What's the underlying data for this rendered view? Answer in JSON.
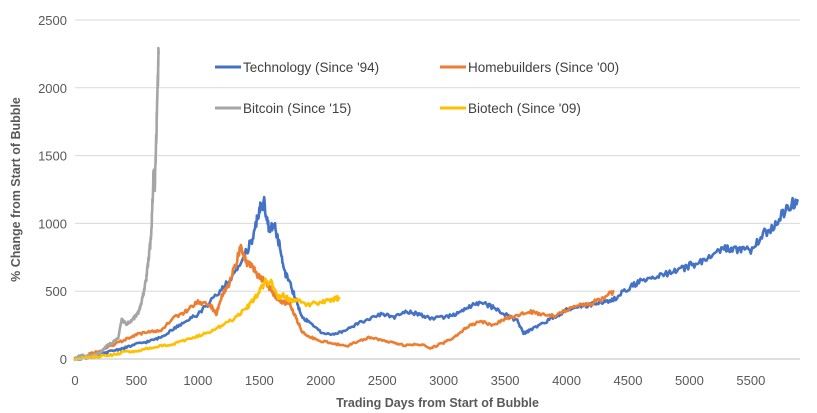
{
  "chart_data": {
    "type": "line",
    "title": "",
    "xlabel": "Trading Days from Start of Bubble",
    "ylabel": "% Change from Start of Bubble",
    "xlim": [
      0,
      5900
    ],
    "ylim": [
      0,
      2500
    ],
    "x_ticks": [
      0,
      500,
      1000,
      1500,
      2000,
      2500,
      3000,
      3500,
      4000,
      4500,
      5000,
      5500
    ],
    "y_ticks": [
      0,
      500,
      1000,
      1500,
      2000,
      2500
    ],
    "grid": "horizontal",
    "legend_position": "top-right",
    "series": [
      {
        "name": "Technology (Since '94)",
        "color": "#4472c4",
        "points": [
          [
            0,
            0
          ],
          [
            100,
            10
          ],
          [
            200,
            30
          ],
          [
            300,
            60
          ],
          [
            400,
            80
          ],
          [
            500,
            110
          ],
          [
            600,
            130
          ],
          [
            700,
            160
          ],
          [
            800,
            220
          ],
          [
            900,
            280
          ],
          [
            1000,
            330
          ],
          [
            1100,
            420
          ],
          [
            1200,
            520
          ],
          [
            1300,
            620
          ],
          [
            1400,
            800
          ],
          [
            1450,
            900
          ],
          [
            1500,
            1100
          ],
          [
            1540,
            1150
          ],
          [
            1580,
            950
          ],
          [
            1620,
            1000
          ],
          [
            1660,
            850
          ],
          [
            1700,
            650
          ],
          [
            1750,
            560
          ],
          [
            1800,
            430
          ],
          [
            1850,
            300
          ],
          [
            1900,
            280
          ],
          [
            2000,
            200
          ],
          [
            2100,
            180
          ],
          [
            2200,
            210
          ],
          [
            2300,
            260
          ],
          [
            2400,
            300
          ],
          [
            2500,
            330
          ],
          [
            2600,
            310
          ],
          [
            2700,
            350
          ],
          [
            2800,
            330
          ],
          [
            2900,
            300
          ],
          [
            3000,
            310
          ],
          [
            3100,
            330
          ],
          [
            3200,
            380
          ],
          [
            3300,
            420
          ],
          [
            3400,
            380
          ],
          [
            3500,
            330
          ],
          [
            3600,
            280
          ],
          [
            3650,
            190
          ],
          [
            3700,
            210
          ],
          [
            3800,
            260
          ],
          [
            3900,
            310
          ],
          [
            4000,
            360
          ],
          [
            4100,
            390
          ],
          [
            4200,
            400
          ],
          [
            4300,
            420
          ],
          [
            4400,
            450
          ],
          [
            4500,
            520
          ],
          [
            4600,
            570
          ],
          [
            4700,
            600
          ],
          [
            4800,
            620
          ],
          [
            4900,
            650
          ],
          [
            5000,
            690
          ],
          [
            5100,
            720
          ],
          [
            5200,
            780
          ],
          [
            5300,
            820
          ],
          [
            5400,
            800
          ],
          [
            5500,
            800
          ],
          [
            5600,
            920
          ],
          [
            5700,
            1000
          ],
          [
            5800,
            1120
          ],
          [
            5880,
            1170
          ]
        ]
      },
      {
        "name": "Homebuilders (Since '00)",
        "color": "#ed7d31",
        "points": [
          [
            0,
            0
          ],
          [
            100,
            30
          ],
          [
            200,
            60
          ],
          [
            300,
            100
          ],
          [
            400,
            140
          ],
          [
            500,
            180
          ],
          [
            600,
            200
          ],
          [
            700,
            210
          ],
          [
            800,
            300
          ],
          [
            900,
            350
          ],
          [
            1000,
            420
          ],
          [
            1100,
            400
          ],
          [
            1150,
            330
          ],
          [
            1200,
            480
          ],
          [
            1250,
            540
          ],
          [
            1300,
            680
          ],
          [
            1350,
            830
          ],
          [
            1400,
            700
          ],
          [
            1450,
            680
          ],
          [
            1500,
            600
          ],
          [
            1550,
            580
          ],
          [
            1600,
            500
          ],
          [
            1650,
            430
          ],
          [
            1700,
            420
          ],
          [
            1750,
            400
          ],
          [
            1800,
            300
          ],
          [
            1850,
            200
          ],
          [
            1900,
            170
          ],
          [
            2000,
            130
          ],
          [
            2100,
            120
          ],
          [
            2200,
            90
          ],
          [
            2300,
            130
          ],
          [
            2400,
            160
          ],
          [
            2500,
            140
          ],
          [
            2600,
            120
          ],
          [
            2700,
            100
          ],
          [
            2800,
            110
          ],
          [
            2900,
            80
          ],
          [
            3000,
            120
          ],
          [
            3100,
            170
          ],
          [
            3200,
            240
          ],
          [
            3300,
            280
          ],
          [
            3400,
            250
          ],
          [
            3500,
            300
          ],
          [
            3600,
            320
          ],
          [
            3700,
            350
          ],
          [
            3800,
            330
          ],
          [
            3900,
            320
          ],
          [
            4000,
            360
          ],
          [
            4100,
            400
          ],
          [
            4200,
            410
          ],
          [
            4300,
            450
          ],
          [
            4380,
            500
          ]
        ]
      },
      {
        "name": "Bitcoin (Since '15)",
        "color": "#a5a5a5",
        "points": [
          [
            0,
            0
          ],
          [
            50,
            30
          ],
          [
            100,
            20
          ],
          [
            150,
            30
          ],
          [
            200,
            40
          ],
          [
            250,
            90
          ],
          [
            300,
            120
          ],
          [
            350,
            150
          ],
          [
            380,
            290
          ],
          [
            420,
            260
          ],
          [
            450,
            280
          ],
          [
            480,
            300
          ],
          [
            500,
            330
          ],
          [
            520,
            350
          ],
          [
            550,
            450
          ],
          [
            580,
            600
          ],
          [
            600,
            750
          ],
          [
            620,
            900
          ],
          [
            640,
            1400
          ],
          [
            650,
            1250
          ],
          [
            660,
            1600
          ],
          [
            670,
            1900
          ],
          [
            680,
            2250
          ]
        ]
      },
      {
        "name": "Biotech (Since '09)",
        "color": "#ffc000",
        "points": [
          [
            0,
            0
          ],
          [
            100,
            10
          ],
          [
            200,
            20
          ],
          [
            300,
            30
          ],
          [
            400,
            50
          ],
          [
            500,
            60
          ],
          [
            600,
            80
          ],
          [
            700,
            100
          ],
          [
            800,
            110
          ],
          [
            900,
            140
          ],
          [
            1000,
            170
          ],
          [
            1100,
            200
          ],
          [
            1200,
            250
          ],
          [
            1300,
            300
          ],
          [
            1400,
            380
          ],
          [
            1450,
            430
          ],
          [
            1500,
            500
          ],
          [
            1550,
            570
          ],
          [
            1600,
            560
          ],
          [
            1650,
            450
          ],
          [
            1700,
            470
          ],
          [
            1750,
            430
          ],
          [
            1800,
            440
          ],
          [
            1900,
            400
          ],
          [
            2000,
            420
          ],
          [
            2100,
            440
          ],
          [
            2150,
            450
          ]
        ]
      }
    ]
  }
}
